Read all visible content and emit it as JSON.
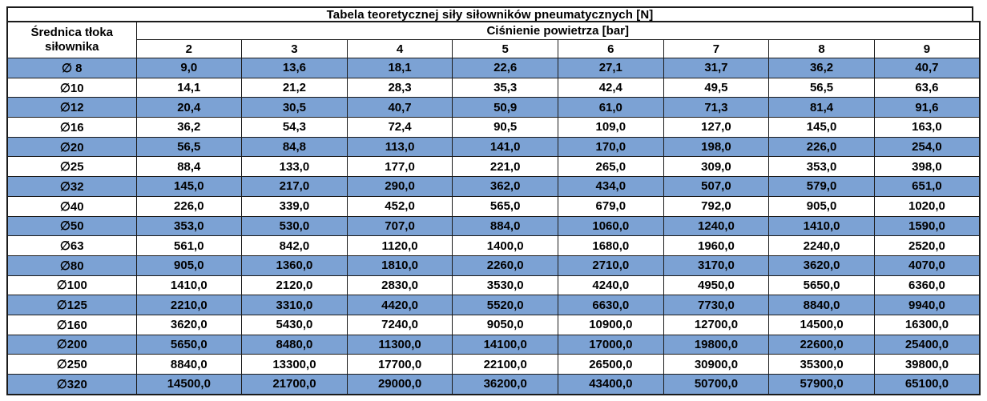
{
  "table": {
    "title": "Tabela teoretycznej siły siłowników pneumatycznych [N]",
    "row_header_line1": "Średnica tłoka",
    "row_header_line2": "siłownika",
    "column_group_header": "Ciśnienie powietrza [bar]",
    "colors": {
      "row_highlight": "#7CA2D4",
      "border": "#1b1b1b",
      "text": "#000000",
      "background": "#ffffff"
    }
  },
  "chart_data": {
    "type": "table",
    "title": "Tabela teoretycznej siły siłowników pneumatycznych [N]",
    "row_header": "Średnica tłoka siłownika",
    "column_group_label": "Ciśnienie powietrza [bar]",
    "unit": "N",
    "value_format": "one decimal place, comma as decimal separator",
    "pressure_bar": [
      2,
      3,
      4,
      5,
      6,
      7,
      8,
      9
    ],
    "rows": [
      {
        "diameter_label": "∅ 8",
        "highlighted": true,
        "values": [
          9.0,
          13.6,
          18.1,
          22.6,
          27.1,
          31.7,
          36.2,
          40.7
        ]
      },
      {
        "diameter_label": "∅10",
        "highlighted": false,
        "values": [
          14.1,
          21.2,
          28.3,
          35.3,
          42.4,
          49.5,
          56.5,
          63.6
        ]
      },
      {
        "diameter_label": "∅12",
        "highlighted": true,
        "values": [
          20.4,
          30.5,
          40.7,
          50.9,
          61.0,
          71.3,
          81.4,
          91.6
        ]
      },
      {
        "diameter_label": "∅16",
        "highlighted": false,
        "values": [
          36.2,
          54.3,
          72.4,
          90.5,
          109.0,
          127.0,
          145.0,
          163.0
        ]
      },
      {
        "diameter_label": "∅20",
        "highlighted": true,
        "values": [
          56.5,
          84.8,
          113.0,
          141.0,
          170.0,
          198.0,
          226.0,
          254.0
        ]
      },
      {
        "diameter_label": "∅25",
        "highlighted": false,
        "values": [
          88.4,
          133.0,
          177.0,
          221.0,
          265.0,
          309.0,
          353.0,
          398.0
        ]
      },
      {
        "diameter_label": "∅32",
        "highlighted": true,
        "values": [
          145.0,
          217.0,
          290.0,
          362.0,
          434.0,
          507.0,
          579.0,
          651.0
        ]
      },
      {
        "diameter_label": "∅40",
        "highlighted": false,
        "values": [
          226.0,
          339.0,
          452.0,
          565.0,
          679.0,
          792.0,
          905.0,
          1020.0
        ]
      },
      {
        "diameter_label": "∅50",
        "highlighted": true,
        "values": [
          353.0,
          530.0,
          707.0,
          884.0,
          1060.0,
          1240.0,
          1410.0,
          1590.0
        ]
      },
      {
        "diameter_label": "∅63",
        "highlighted": false,
        "values": [
          561.0,
          842.0,
          1120.0,
          1400.0,
          1680.0,
          1960.0,
          2240.0,
          2520.0
        ]
      },
      {
        "diameter_label": "∅80",
        "highlighted": true,
        "values": [
          905.0,
          1360.0,
          1810.0,
          2260.0,
          2710.0,
          3170.0,
          3620.0,
          4070.0
        ]
      },
      {
        "diameter_label": "∅100",
        "highlighted": false,
        "values": [
          1410.0,
          2120.0,
          2830.0,
          3530.0,
          4240.0,
          4950.0,
          5650.0,
          6360.0
        ]
      },
      {
        "diameter_label": "∅125",
        "highlighted": true,
        "values": [
          2210.0,
          3310.0,
          4420.0,
          5520.0,
          6630.0,
          7730.0,
          8840.0,
          9940.0
        ]
      },
      {
        "diameter_label": "∅160",
        "highlighted": false,
        "values": [
          3620.0,
          5430.0,
          7240.0,
          9050.0,
          10900.0,
          12700.0,
          14500.0,
          16300.0
        ]
      },
      {
        "diameter_label": "∅200",
        "highlighted": true,
        "values": [
          5650.0,
          8480.0,
          11300.0,
          14100.0,
          17000.0,
          19800.0,
          22600.0,
          25400.0
        ]
      },
      {
        "diameter_label": "∅250",
        "highlighted": false,
        "values": [
          8840.0,
          13300.0,
          17700.0,
          22100.0,
          26500.0,
          30900.0,
          35300.0,
          39800.0
        ]
      },
      {
        "diameter_label": "∅320",
        "highlighted": true,
        "values": [
          14500.0,
          21700.0,
          29000.0,
          36200.0,
          43400.0,
          50700.0,
          57900.0,
          65100.0
        ]
      }
    ]
  }
}
